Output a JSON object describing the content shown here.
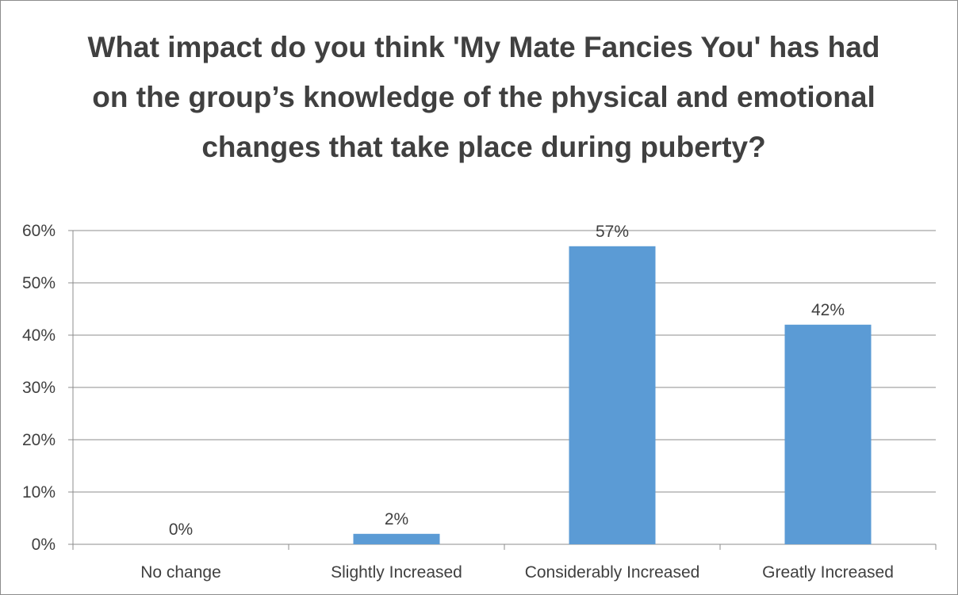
{
  "chart_data": {
    "type": "bar",
    "title": "What impact do you think 'My Mate Fancies You' has had on the group’s knowledge of the physical and emotional changes that take place during puberty?",
    "categories": [
      "No change",
      "Slightly Increased",
      "Considerably Increased",
      "Greatly Increased"
    ],
    "values": [
      0,
      2,
      57,
      42
    ],
    "data_labels": [
      "0%",
      "2%",
      "57%",
      "42%"
    ],
    "value_unit": "%",
    "ylim": [
      0,
      60
    ],
    "yticks": [
      0,
      10,
      20,
      30,
      40,
      50,
      60
    ],
    "ytick_labels": [
      "0%",
      "10%",
      "20%",
      "30%",
      "40%",
      "50%",
      "60%"
    ],
    "grid": true,
    "legend": "none",
    "bar_color": "#5b9bd5"
  }
}
